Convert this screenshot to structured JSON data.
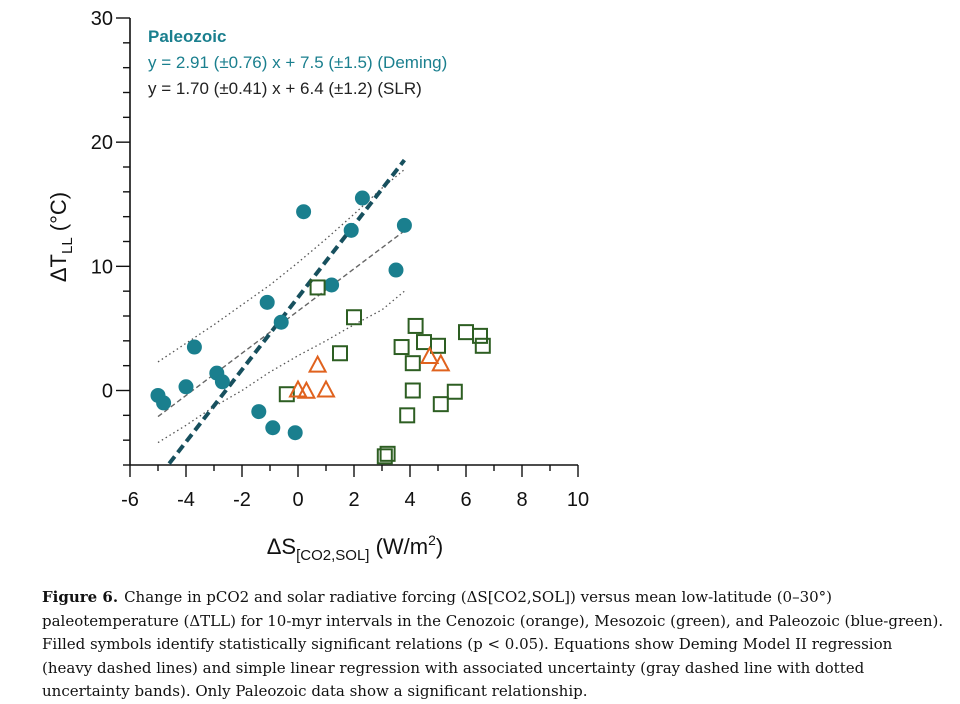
{
  "chart_data": {
    "type": "scatter",
    "xlabel": {
      "main": "ΔS",
      "sub": "[CO2,SOL]",
      "unit_pre": " (W/m",
      "unit_sup": "2",
      "unit_post": ")"
    },
    "ylabel": {
      "main": "ΔT",
      "sub": "LL",
      "unit": " (°C)"
    },
    "xlim": [
      -6,
      10
    ],
    "ylim": [
      -6,
      30
    ],
    "xticks": [
      -6,
      -4,
      -2,
      0,
      2,
      4,
      6,
      8,
      10
    ],
    "yticks": [
      0,
      10,
      20,
      30
    ],
    "ytick_labels": [
      "0",
      "10",
      "20",
      "30"
    ],
    "xtick_labels": [
      "-6",
      "-4",
      "-2",
      "0",
      "2",
      "4",
      "6",
      "8",
      "10"
    ],
    "annotation": {
      "title": "Paleozoic",
      "deming": "y = 2.91 (±0.76) x + 7.5 (±1.5) (Deming)",
      "slr": "y = 1.70 (±0.41) x + 6.4 (±1.2) (SLR)"
    },
    "colors": {
      "paleozoic": "#1a7f8e",
      "mesozoic": "#2d5e22",
      "cenozoic": "#e0621e",
      "deming_line": "#17505e",
      "slr_line": "#666666"
    },
    "series": [
      {
        "name": "Paleozoic",
        "marker": "filled-circle",
        "points": [
          [
            -5.0,
            -0.4
          ],
          [
            -4.8,
            -1.0
          ],
          [
            -4.0,
            0.3
          ],
          [
            -3.7,
            3.5
          ],
          [
            -2.9,
            1.4
          ],
          [
            -2.7,
            0.7
          ],
          [
            -1.4,
            -1.7
          ],
          [
            -1.1,
            7.1
          ],
          [
            -0.9,
            -3.0
          ],
          [
            -0.6,
            5.5
          ],
          [
            -0.1,
            -3.4
          ],
          [
            0.2,
            14.4
          ],
          [
            1.2,
            8.5
          ],
          [
            1.9,
            12.9
          ],
          [
            2.3,
            15.5
          ],
          [
            3.5,
            9.7
          ],
          [
            3.8,
            13.3
          ]
        ]
      },
      {
        "name": "Mesozoic",
        "marker": "open-square",
        "points": [
          [
            -0.4,
            -0.3
          ],
          [
            0.7,
            8.3
          ],
          [
            1.5,
            3.0
          ],
          [
            2.0,
            5.9
          ],
          [
            3.1,
            -5.3
          ],
          [
            3.2,
            -5.1
          ],
          [
            3.7,
            3.5
          ],
          [
            3.9,
            -2.0
          ],
          [
            4.1,
            0.0
          ],
          [
            4.1,
            2.2
          ],
          [
            4.2,
            5.2
          ],
          [
            4.5,
            3.9
          ],
          [
            5.0,
            3.6
          ],
          [
            5.1,
            -1.1
          ],
          [
            5.6,
            -0.1
          ],
          [
            6.0,
            4.7
          ],
          [
            6.5,
            4.4
          ],
          [
            6.6,
            3.6
          ]
        ]
      },
      {
        "name": "Cenozoic",
        "marker": "open-triangle",
        "points": [
          [
            0.0,
            0.0
          ],
          [
            0.3,
            -0.1
          ],
          [
            0.7,
            2.0
          ],
          [
            1.0,
            0.0
          ],
          [
            4.7,
            2.7
          ],
          [
            5.1,
            2.1
          ]
        ]
      }
    ],
    "regression": {
      "deming": {
        "slope": 2.91,
        "intercept": 7.5,
        "x_range": [
          -4.6,
          3.8
        ]
      },
      "slr": {
        "slope": 1.7,
        "intercept": 6.4,
        "x_range": [
          -5.0,
          3.8
        ]
      },
      "upper_band": [
        [
          -5.0,
          2.3
        ],
        [
          -4.0,
          3.8
        ],
        [
          -3.0,
          5.3
        ],
        [
          -2.0,
          6.9
        ],
        [
          -1.0,
          8.5
        ],
        [
          0.0,
          10.3
        ],
        [
          1.0,
          12.2
        ],
        [
          2.0,
          14.2
        ],
        [
          3.0,
          16.3
        ],
        [
          3.8,
          17.8
        ]
      ],
      "lower_band": [
        [
          -5.0,
          -4.2
        ],
        [
          -4.0,
          -2.8
        ],
        [
          -3.0,
          -1.3
        ],
        [
          -2.0,
          0.0
        ],
        [
          -1.0,
          1.5
        ],
        [
          0.0,
          2.8
        ],
        [
          1.0,
          4.0
        ],
        [
          2.0,
          5.3
        ],
        [
          3.0,
          6.5
        ],
        [
          3.8,
          8.0
        ]
      ]
    }
  },
  "caption": {
    "label": "Figure 6.",
    "text": "Change in pCO2 and solar radiative forcing (ΔS[CO2,SOL]) versus mean low-latitude (0–30°) paleotemperature (ΔTLL) for 10-myr intervals in the Cenozoic (orange), Mesozoic (green), and Paleozoic (blue-green). Filled symbols identify statistically significant relations (p < 0.05). Equations show Deming Model II regression (heavy dashed lines) and simple linear regression with associated uncertainty (gray dashed line with dotted uncertainty bands). Only Paleozoic data show a significant relationship."
  }
}
